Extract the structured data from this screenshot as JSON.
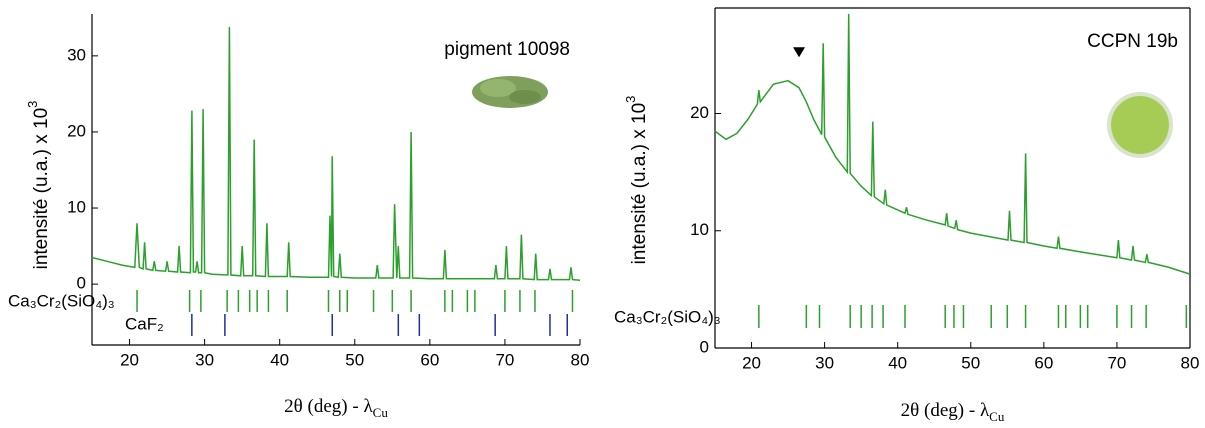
{
  "chart_data": [
    {
      "type": "line",
      "annotation": "pigment 10098",
      "xlabel": {
        "text": "2θ (deg) - λ",
        "sub": "Cu"
      },
      "ylabel": {
        "text": "intensité (u.a.)  x 10",
        "sup": "3"
      },
      "xlim": [
        15,
        80
      ],
      "xticks": [
        20,
        30,
        40,
        50,
        60,
        70,
        80
      ],
      "ylim": [
        -8,
        35.5
      ],
      "yticks": [
        0,
        10,
        20,
        30
      ],
      "x": [
        15,
        17,
        19,
        20.7,
        21,
        21.3,
        21.8,
        22,
        22.2,
        23.1,
        23.3,
        23.5,
        24.8,
        25,
        25.2,
        26.4,
        26.6,
        26.8,
        28.1,
        28.3,
        28.5,
        28.8,
        29,
        29.2,
        29.6,
        29.8,
        30,
        31,
        33.1,
        33.3,
        33.5,
        34.8,
        35,
        35.2,
        36.4,
        36.6,
        36.8,
        38.1,
        38.3,
        38.5,
        41,
        41.2,
        41.4,
        44,
        46.5,
        46.7,
        46.9,
        47,
        47.2,
        47.8,
        48,
        48.2,
        50,
        52.8,
        53,
        53.2,
        55.1,
        55.3,
        55.6,
        55.8,
        56,
        57.3,
        57.5,
        57.7,
        60,
        61.8,
        62,
        62.2,
        65,
        68.6,
        68.8,
        69,
        70,
        70.2,
        70.4,
        72,
        72.2,
        72.4,
        73.9,
        74.1,
        74.3,
        75.8,
        76,
        76.2,
        78.6,
        78.8,
        79,
        80
      ],
      "series": [
        {
          "color": "#2ca02c",
          "values": [
            3.5,
            3,
            2.5,
            2.2,
            8,
            2.2,
            2,
            5.5,
            2,
            1.8,
            3,
            1.8,
            1.7,
            3,
            1.7,
            1.6,
            5,
            1.6,
            1.5,
            22.8,
            1.6,
            1.6,
            3,
            1.5,
            1.5,
            23,
            1.5,
            1.3,
            1.2,
            33.8,
            1.2,
            1.1,
            5,
            1.1,
            1.1,
            19,
            1.1,
            1,
            8,
            1,
            1,
            5.5,
            1,
            0.9,
            0.9,
            9,
            1,
            16.8,
            1,
            0.9,
            4,
            0.9,
            0.8,
            0.8,
            2.5,
            0.8,
            0.8,
            10.5,
            0.8,
            5,
            0.8,
            0.8,
            20,
            0.8,
            0.7,
            0.7,
            4.5,
            0.7,
            0.7,
            0.7,
            2.5,
            0.7,
            0.7,
            5,
            0.7,
            0.7,
            6.5,
            0.7,
            0.6,
            4,
            0.6,
            0.6,
            2,
            0.6,
            0.6,
            2.2,
            0.6,
            0.5
          ]
        }
      ],
      "references": [
        {
          "name": "Ca₃Cr₂(SiO₄)₃",
          "color": "#2ca02c",
          "positions": [
            21,
            28,
            29.5,
            33,
            34.5,
            36,
            37,
            38.5,
            41,
            46.5,
            48,
            49,
            52.5,
            55,
            57.5,
            62,
            63,
            65,
            66,
            70,
            72,
            74,
            79
          ]
        },
        {
          "name": "CaF₂",
          "color": "#1f2fa0",
          "positions": [
            28.3,
            32.7,
            47,
            55.8,
            58.6,
            68.7,
            76,
            78.3
          ]
        }
      ]
    },
    {
      "type": "line",
      "annotation": "CCPN 19b",
      "xlabel": {
        "text": "2θ (deg) - λ",
        "sub": "Cu"
      },
      "ylabel": {
        "text": "intensité (u.a.)  x 10",
        "sup": "3"
      },
      "xlim": [
        15,
        80
      ],
      "xticks": [
        20,
        30,
        40,
        50,
        60,
        70,
        80
      ],
      "ylim": [
        0,
        29
      ],
      "yticks": [
        0,
        10,
        20
      ],
      "marker": {
        "x": 26.5,
        "y": 24.8
      },
      "x": [
        15,
        16.5,
        18,
        19.5,
        20.8,
        21,
        21.2,
        23,
        25,
        26.5,
        27.5,
        28.5,
        29.6,
        29.8,
        30,
        31.5,
        33.1,
        33.3,
        33.5,
        35,
        36.4,
        36.6,
        36.8,
        38.1,
        38.3,
        38.5,
        41,
        41.2,
        41.4,
        44,
        46.5,
        46.7,
        46.9,
        47.8,
        48,
        48.2,
        50,
        55.1,
        55.3,
        55.5,
        57.3,
        57.5,
        57.7,
        60,
        61.8,
        62,
        62.2,
        65,
        70,
        70.2,
        70.4,
        72,
        72.2,
        72.4,
        73.9,
        74.1,
        74.3,
        77,
        80
      ],
      "series": [
        {
          "color": "#2ca02c",
          "values": [
            18.5,
            17.8,
            18.3,
            19.5,
            20.8,
            22,
            21,
            22.5,
            22.8,
            22.2,
            21,
            19.5,
            18.2,
            26,
            18,
            16.3,
            15,
            28.5,
            14.9,
            13.8,
            13,
            19.3,
            12.9,
            12.3,
            13.5,
            12.2,
            11.5,
            12,
            11.4,
            10.9,
            10.5,
            11.5,
            10.4,
            10.2,
            10.9,
            10.1,
            9.8,
            9.2,
            11.7,
            9.2,
            9,
            16.6,
            9,
            8.7,
            8.5,
            9.5,
            8.5,
            8.2,
            7.7,
            9.2,
            7.7,
            7.5,
            8.7,
            7.5,
            7.3,
            8,
            7.3,
            6.9,
            6.3
          ]
        }
      ],
      "references": [
        {
          "name": "Ca₃Cr₂(SiO₄)₃",
          "color": "#2ca02c",
          "positions": [
            21,
            27.5,
            29.3,
            33.5,
            35,
            36.5,
            38,
            41,
            46.5,
            47.7,
            49,
            52.8,
            55,
            57.5,
            62,
            63,
            65,
            66,
            70,
            72,
            74,
            79.5
          ]
        }
      ]
    }
  ]
}
